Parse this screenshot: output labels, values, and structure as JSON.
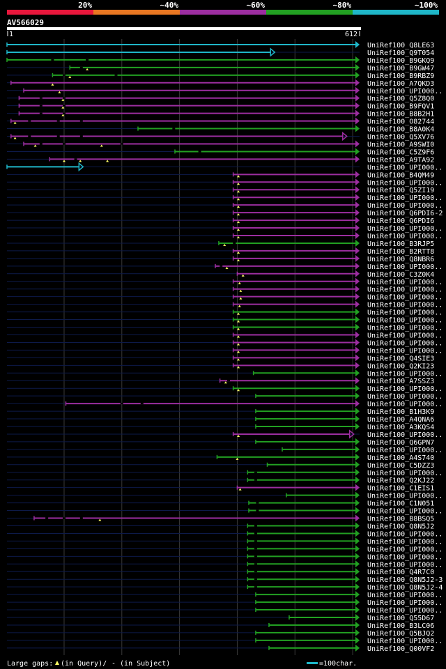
{
  "chart_data": {
    "type": "alignment",
    "title": "AV566029",
    "query_length": 612,
    "axis": {
      "start_label": "1",
      "end_label": "612",
      "grid_every": 100
    },
    "color_legend": [
      {
        "label": "20%",
        "color": "#e8173c"
      },
      {
        "label": "~40%",
        "color": "#e87722"
      },
      {
        "label": "~60%",
        "color": "#9c2ea0"
      },
      {
        "label": "~80%",
        "color": "#22a022"
      },
      {
        "label": "~100%",
        "color": "#1fb6c8"
      }
    ],
    "footer": {
      "large_gaps_label": "Large gaps:",
      "in_query_label": "(in Query)/",
      "in_subject_label": "- (in Subject)",
      "scale_label": "=100char."
    },
    "hits": [
      {
        "name": "UniRef100_Q8LE63",
        "start": 1,
        "end": 612,
        "identity": 100,
        "gaps": [],
        "qgaps": []
      },
      {
        "name": "UniRef100_Q9T054",
        "start": 1,
        "end": 465,
        "identity": 100,
        "gaps": [],
        "qgaps": []
      },
      {
        "name": "UniRef100_B9GKQ9",
        "start": 1,
        "end": 612,
        "identity": 80,
        "gaps": [
          80,
          140
        ],
        "qgaps": []
      },
      {
        "name": "UniRef100_B9GW47",
        "start": 110,
        "end": 612,
        "identity": 80,
        "gaps": [
          130
        ],
        "qgaps": [
          140
        ]
      },
      {
        "name": "UniRef100_B9RBZ9",
        "start": 80,
        "end": 612,
        "identity": 80,
        "gaps": [
          100,
          190
        ],
        "qgaps": [
          110
        ]
      },
      {
        "name": "UniRef100_A7QKD3",
        "start": 8,
        "end": 612,
        "identity": 60,
        "gaps": [],
        "qgaps": [
          80
        ]
      },
      {
        "name": "UniRef100_UPI000..",
        "start": 30,
        "end": 612,
        "identity": 60,
        "gaps": [],
        "qgaps": [
          92
        ]
      },
      {
        "name": "UniRef100_Q5Z8Q0",
        "start": 22,
        "end": 612,
        "identity": 60,
        "gaps": [
          60,
          100
        ],
        "qgaps": [
          98
        ]
      },
      {
        "name": "UniRef100_B9FQV1",
        "start": 22,
        "end": 612,
        "identity": 60,
        "gaps": [
          60,
          100
        ],
        "qgaps": [
          98
        ]
      },
      {
        "name": "UniRef100_B8B2H1",
        "start": 22,
        "end": 612,
        "identity": 60,
        "gaps": [
          60,
          100
        ],
        "qgaps": [
          98
        ]
      },
      {
        "name": "UniRef100_O82744",
        "start": 8,
        "end": 612,
        "identity": 60,
        "gaps": [
          40,
          90,
          130
        ],
        "qgaps": [
          15
        ]
      },
      {
        "name": "UniRef100_B8A0K4",
        "start": 228,
        "end": 612,
        "identity": 80,
        "gaps": [
          290
        ],
        "qgaps": []
      },
      {
        "name": "UniRef100_Q5XV76",
        "start": 8,
        "end": 590,
        "identity": 60,
        "gaps": [
          40,
          90,
          130
        ],
        "qgaps": [
          15
        ]
      },
      {
        "name": "UniRef100_A9SWI0",
        "start": 30,
        "end": 612,
        "identity": 60,
        "gaps": [
          60,
          100,
          200
        ],
        "qgaps": [
          50,
          165
        ]
      },
      {
        "name": "UniRef100_C5Z9F6",
        "start": 292,
        "end": 612,
        "identity": 80,
        "gaps": [
          335
        ],
        "qgaps": []
      },
      {
        "name": "UniRef100_A9TA92",
        "start": 75,
        "end": 612,
        "identity": 60,
        "gaps": [
          120
        ],
        "qgaps": [
          100,
          128,
          175
        ]
      },
      {
        "name": "UniRef100_UPI000..",
        "start": 1,
        "end": 133,
        "identity": 100,
        "gaps": [],
        "qgaps": []
      },
      {
        "name": "UniRef100_B4QM49",
        "start": 393,
        "end": 612,
        "identity": 60,
        "gaps": [],
        "qgaps": [
          402
        ]
      },
      {
        "name": "UniRef100_UPI000..",
        "start": 393,
        "end": 612,
        "identity": 60,
        "gaps": [],
        "qgaps": [
          402
        ]
      },
      {
        "name": "UniRef100_Q5ZI19",
        "start": 393,
        "end": 612,
        "identity": 60,
        "gaps": [],
        "qgaps": [
          402
        ]
      },
      {
        "name": "UniRef100_UPI000..",
        "start": 393,
        "end": 612,
        "identity": 60,
        "gaps": [],
        "qgaps": [
          402
        ]
      },
      {
        "name": "UniRef100_UPI000..",
        "start": 393,
        "end": 612,
        "identity": 60,
        "gaps": [],
        "qgaps": [
          402
        ]
      },
      {
        "name": "UniRef100_Q6PDI6-2",
        "start": 393,
        "end": 612,
        "identity": 60,
        "gaps": [],
        "qgaps": [
          402
        ]
      },
      {
        "name": "UniRef100_Q6PDI6",
        "start": 393,
        "end": 612,
        "identity": 60,
        "gaps": [],
        "qgaps": [
          402
        ]
      },
      {
        "name": "UniRef100_UPI000..",
        "start": 393,
        "end": 612,
        "identity": 60,
        "gaps": [],
        "qgaps": [
          402
        ]
      },
      {
        "name": "UniRef100_UPI000..",
        "start": 393,
        "end": 612,
        "identity": 60,
        "gaps": [],
        "qgaps": [
          402
        ]
      },
      {
        "name": "UniRef100_B3RJP5",
        "start": 368,
        "end": 612,
        "identity": 80,
        "gaps": [
          395
        ],
        "qgaps": [
          378
        ]
      },
      {
        "name": "UniRef100_B2RTT8",
        "start": 393,
        "end": 612,
        "identity": 60,
        "gaps": [],
        "qgaps": [
          402
        ]
      },
      {
        "name": "UniRef100_Q8NBR6",
        "start": 393,
        "end": 612,
        "identity": 60,
        "gaps": [],
        "qgaps": [
          402
        ]
      },
      {
        "name": "UniRef100_UPI000..",
        "start": 362,
        "end": 612,
        "identity": 60,
        "gaps": [
          372
        ],
        "qgaps": [
          382
        ]
      },
      {
        "name": "UniRef100_C3Z0K4",
        "start": 400,
        "end": 612,
        "identity": 60,
        "gaps": [],
        "qgaps": [
          410
        ]
      },
      {
        "name": "UniRef100_UPI000..",
        "start": 393,
        "end": 612,
        "identity": 60,
        "gaps": [],
        "qgaps": [
          404
        ]
      },
      {
        "name": "UniRef100_UPI000..",
        "start": 393,
        "end": 612,
        "identity": 60,
        "gaps": [],
        "qgaps": [
          406
        ]
      },
      {
        "name": "UniRef100_UPI000..",
        "start": 393,
        "end": 612,
        "identity": 60,
        "gaps": [],
        "qgaps": [
          406
        ]
      },
      {
        "name": "UniRef100_UPI000..",
        "start": 393,
        "end": 612,
        "identity": 60,
        "gaps": [],
        "qgaps": [
          404
        ]
      },
      {
        "name": "UniRef100_UPI000..",
        "start": 393,
        "end": 612,
        "identity": 80,
        "gaps": [],
        "qgaps": [
          402
        ]
      },
      {
        "name": "UniRef100_UPI000..",
        "start": 393,
        "end": 612,
        "identity": 80,
        "gaps": [],
        "qgaps": [
          402
        ]
      },
      {
        "name": "UniRef100_UPI000..",
        "start": 393,
        "end": 612,
        "identity": 80,
        "gaps": [],
        "qgaps": [
          402
        ]
      },
      {
        "name": "UniRef100_UPI000..",
        "start": 393,
        "end": 612,
        "identity": 60,
        "gaps": [],
        "qgaps": [
          402
        ]
      },
      {
        "name": "UniRef100_UPI000..",
        "start": 393,
        "end": 612,
        "identity": 60,
        "gaps": [],
        "qgaps": [
          402
        ]
      },
      {
        "name": "UniRef100_UPI000..",
        "start": 393,
        "end": 612,
        "identity": 60,
        "gaps": [],
        "qgaps": [
          402
        ]
      },
      {
        "name": "UniRef100_Q4SIE3",
        "start": 393,
        "end": 612,
        "identity": 60,
        "gaps": [],
        "qgaps": [
          402
        ]
      },
      {
        "name": "UniRef100_Q2KI23",
        "start": 393,
        "end": 612,
        "identity": 60,
        "gaps": [],
        "qgaps": [
          402
        ]
      },
      {
        "name": "UniRef100_UPI000..",
        "start": 428,
        "end": 612,
        "identity": 80,
        "gaps": [],
        "qgaps": []
      },
      {
        "name": "UniRef100_A7SSZ3",
        "start": 370,
        "end": 612,
        "identity": 60,
        "gaps": [
          385
        ],
        "qgaps": [
          380
        ]
      },
      {
        "name": "UniRef100_UPI000..",
        "start": 393,
        "end": 612,
        "identity": 80,
        "gaps": [],
        "qgaps": [
          402
        ]
      },
      {
        "name": "UniRef100_UPI000..",
        "start": 432,
        "end": 612,
        "identity": 80,
        "gaps": [],
        "qgaps": []
      },
      {
        "name": "UniRef100_UPI000..",
        "start": 103,
        "end": 612,
        "identity": 60,
        "gaps": [
          200,
          235
        ],
        "qgaps": []
      },
      {
        "name": "UniRef100_B1H3K9",
        "start": 432,
        "end": 612,
        "identity": 80,
        "gaps": [],
        "qgaps": []
      },
      {
        "name": "UniRef100_A4QNA6",
        "start": 432,
        "end": 612,
        "identity": 80,
        "gaps": [],
        "qgaps": []
      },
      {
        "name": "UniRef100_A3KQS4",
        "start": 432,
        "end": 612,
        "identity": 80,
        "gaps": [],
        "qgaps": []
      },
      {
        "name": "UniRef100_UPI000..",
        "start": 393,
        "end": 602,
        "identity": 60,
        "gaps": [],
        "qgaps": [
          402
        ]
      },
      {
        "name": "UniRef100_Q6GPN7",
        "start": 432,
        "end": 612,
        "identity": 80,
        "gaps": [],
        "qgaps": []
      },
      {
        "name": "UniRef100_UPI000..",
        "start": 478,
        "end": 612,
        "identity": 80,
        "gaps": [],
        "qgaps": []
      },
      {
        "name": "UniRef100_A4S740",
        "start": 365,
        "end": 612,
        "identity": 80,
        "gaps": [],
        "qgaps": [
          400
        ]
      },
      {
        "name": "UniRef100_C5DZZ3",
        "start": 452,
        "end": 612,
        "identity": 80,
        "gaps": [],
        "qgaps": []
      },
      {
        "name": "UniRef100_UPI000..",
        "start": 418,
        "end": 612,
        "identity": 80,
        "gaps": [
          432
        ],
        "qgaps": []
      },
      {
        "name": "UniRef100_Q2KJ22",
        "start": 418,
        "end": 612,
        "identity": 80,
        "gaps": [
          432
        ],
        "qgaps": []
      },
      {
        "name": "UniRef100_C1EIS1",
        "start": 400,
        "end": 612,
        "identity": 60,
        "gaps": [],
        "qgaps": [
          405
        ]
      },
      {
        "name": "UniRef100_UPI000..",
        "start": 485,
        "end": 612,
        "identity": 80,
        "gaps": [],
        "qgaps": []
      },
      {
        "name": "UniRef100_C1N051",
        "start": 420,
        "end": 612,
        "identity": 80,
        "gaps": [
          435
        ],
        "qgaps": []
      },
      {
        "name": "UniRef100_UPI000..",
        "start": 420,
        "end": 612,
        "identity": 80,
        "gaps": [
          435
        ],
        "qgaps": []
      },
      {
        "name": "UniRef100_B8BSQ5",
        "start": 48,
        "end": 612,
        "identity": 60,
        "gaps": [
          70,
          100,
          130
        ],
        "qgaps": [
          162
        ]
      },
      {
        "name": "UniRef100_Q8N5J2",
        "start": 418,
        "end": 612,
        "identity": 80,
        "gaps": [
          432
        ],
        "qgaps": []
      },
      {
        "name": "UniRef100_UPI000..",
        "start": 418,
        "end": 612,
        "identity": 80,
        "gaps": [
          432
        ],
        "qgaps": []
      },
      {
        "name": "UniRef100_UPI000..",
        "start": 418,
        "end": 612,
        "identity": 80,
        "gaps": [
          432
        ],
        "qgaps": []
      },
      {
        "name": "UniRef100_UPI000..",
        "start": 418,
        "end": 612,
        "identity": 80,
        "gaps": [
          432
        ],
        "qgaps": []
      },
      {
        "name": "UniRef100_UPI000..",
        "start": 418,
        "end": 612,
        "identity": 80,
        "gaps": [
          432
        ],
        "qgaps": []
      },
      {
        "name": "UniRef100_UPI000..",
        "start": 418,
        "end": 612,
        "identity": 80,
        "gaps": [
          432
        ],
        "qgaps": []
      },
      {
        "name": "UniRef100_Q4R7C0",
        "start": 418,
        "end": 612,
        "identity": 80,
        "gaps": [
          432
        ],
        "qgaps": []
      },
      {
        "name": "UniRef100_Q8N5J2-3",
        "start": 418,
        "end": 612,
        "identity": 80,
        "gaps": [
          432
        ],
        "qgaps": []
      },
      {
        "name": "UniRef100_Q8N5J2-4",
        "start": 418,
        "end": 612,
        "identity": 80,
        "gaps": [
          432
        ],
        "qgaps": []
      },
      {
        "name": "UniRef100_UPI000..",
        "start": 432,
        "end": 612,
        "identity": 80,
        "gaps": [],
        "qgaps": []
      },
      {
        "name": "UniRef100_UPI000..",
        "start": 432,
        "end": 612,
        "identity": 80,
        "gaps": [],
        "qgaps": []
      },
      {
        "name": "UniRef100_UPI000..",
        "start": 432,
        "end": 612,
        "identity": 80,
        "gaps": [],
        "qgaps": []
      },
      {
        "name": "UniRef100_Q55D67",
        "start": 490,
        "end": 612,
        "identity": 80,
        "gaps": [],
        "qgaps": []
      },
      {
        "name": "UniRef100_B3LC06",
        "start": 455,
        "end": 612,
        "identity": 80,
        "gaps": [],
        "qgaps": []
      },
      {
        "name": "UniRef100_Q5BJQ2",
        "start": 432,
        "end": 612,
        "identity": 80,
        "gaps": [],
        "qgaps": []
      },
      {
        "name": "UniRef100_UPI000..",
        "start": 432,
        "end": 612,
        "identity": 80,
        "gaps": [],
        "qgaps": []
      },
      {
        "name": "UniRef100_Q00VF2",
        "start": 455,
        "end": 612,
        "identity": 80,
        "gaps": [],
        "qgaps": []
      }
    ]
  }
}
